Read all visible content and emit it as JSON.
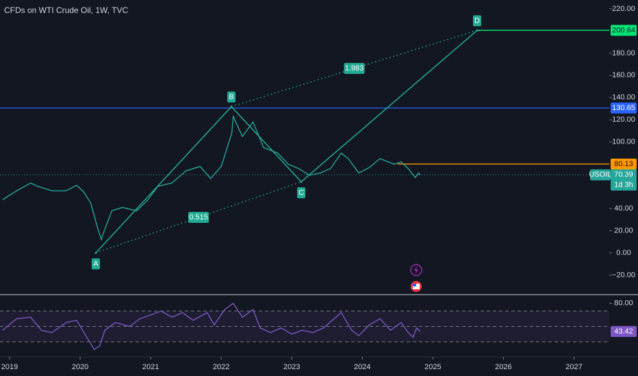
{
  "chart_data": [
    {
      "type": "line",
      "title": "CFDs on WTI Crude Oil, 1W, TVC",
      "x": [
        2018.9,
        2019.1,
        2019.3,
        2019.4,
        2019.6,
        2019.8,
        2019.95,
        2020.05,
        2020.15,
        2020.25,
        2020.3,
        2020.33,
        2020.45,
        2020.6,
        2020.8,
        2020.95,
        2021.1,
        2021.3,
        2021.5,
        2021.7,
        2021.85,
        2022.0,
        2022.15,
        2022.17,
        2022.3,
        2022.45,
        2022.6,
        2022.8,
        2022.95,
        2023.1,
        2023.25,
        2023.4,
        2023.55,
        2023.7,
        2023.8,
        2023.95,
        2024.1,
        2024.25,
        2024.45,
        2024.55,
        2024.65,
        2024.75,
        2024.8,
        2024.82
      ],
      "series": [
        {
          "name": "USOIL",
          "color": "#26a69a",
          "values": [
            48,
            56,
            63,
            60,
            56,
            56,
            61,
            55,
            45,
            22,
            12,
            18,
            38,
            41,
            38,
            47,
            60,
            63,
            74,
            78,
            67,
            78,
            108,
            123,
            105,
            118,
            95,
            90,
            80,
            76,
            70,
            72,
            76,
            90,
            85,
            72,
            77,
            85,
            80,
            82,
            76,
            68,
            72,
            70.39
          ]
        }
      ],
      "last_label": "1d 3h",
      "xlim": [
        2018.864,
        2027.5
      ],
      "xticks": [
        2019,
        2020,
        2021,
        2022,
        2023,
        2024,
        2025,
        2026,
        2027
      ],
      "ylim": [
        -37,
        228
      ],
      "yticks": [
        {
          "value": 220,
          "label": "220.00"
        },
        {
          "value": 180,
          "label": "180.00"
        },
        {
          "value": 160,
          "label": "160.00"
        },
        {
          "value": 140,
          "label": "140.00"
        },
        {
          "value": 120,
          "label": "120.00"
        },
        {
          "value": 100,
          "label": "100.00"
        },
        {
          "value": 40,
          "label": "40.00"
        },
        {
          "value": 20,
          "label": "20.00"
        },
        {
          "value": 0,
          "label": "0.00"
        },
        {
          "value": -20,
          "label": "−20.00"
        }
      ],
      "levels": [
        {
          "value": 130.65,
          "color": "#2962ff",
          "x_start": 2018.864
        },
        {
          "value": 80.13,
          "color": "#ff9800",
          "x_start": 2024.5
        }
      ],
      "pattern": {
        "color": "#22ab94",
        "end_color": "#00e676",
        "points": [
          {
            "label": "A",
            "x": 2020.222,
            "y": 0
          },
          {
            "label": "B",
            "x": 2022.144,
            "y": 131.9
          },
          {
            "label": "C",
            "x": 2023.134,
            "y": 64.1
          },
          {
            "label": "D",
            "x": 2025.627,
            "y": 200.64
          }
        ],
        "ratios": [
          0.515,
          1.983
        ]
      }
    },
    {
      "type": "line",
      "x": [
        2018.9,
        2019.1,
        2019.3,
        2019.45,
        2019.6,
        2019.8,
        2019.95,
        2020.1,
        2020.2,
        2020.28,
        2020.35,
        2020.5,
        2020.7,
        2020.85,
        2021.0,
        2021.15,
        2021.3,
        2021.45,
        2021.6,
        2021.8,
        2021.9,
        2022.05,
        2022.17,
        2022.3,
        2022.45,
        2022.55,
        2022.7,
        2022.85,
        2023.0,
        2023.15,
        2023.3,
        2023.45,
        2023.6,
        2023.7,
        2023.85,
        2023.95,
        2024.1,
        2024.25,
        2024.4,
        2024.55,
        2024.65,
        2024.72,
        2024.77,
        2024.82
      ],
      "series": [
        {
          "color": "#7e57c2",
          "values": [
            45,
            60,
            62,
            45,
            42,
            55,
            58,
            35,
            20,
            25,
            45,
            55,
            50,
            60,
            65,
            70,
            62,
            68,
            58,
            68,
            52,
            72,
            80,
            62,
            72,
            48,
            42,
            48,
            40,
            45,
            42,
            48,
            60,
            68,
            45,
            38,
            52,
            60,
            45,
            55,
            42,
            36,
            48,
            43.42
          ]
        }
      ],
      "xlim": [
        2018.864,
        2027.5
      ],
      "ylim": [
        12.2,
        90.4
      ],
      "yticks": [
        {
          "value": 80,
          "label": "80.00"
        }
      ],
      "bands": [
        70,
        50,
        30
      ]
    }
  ]
}
